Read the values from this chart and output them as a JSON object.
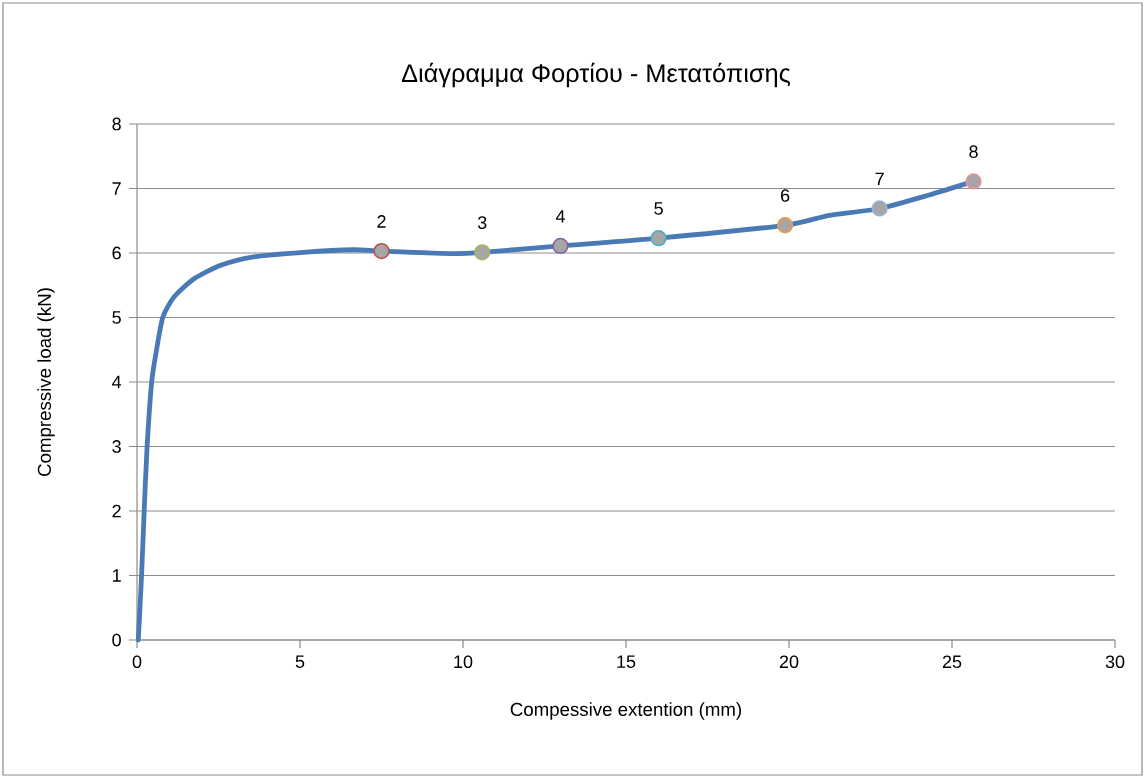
{
  "chart_data": {
    "type": "line",
    "title": "Διάγραμμα Φορτίου - Μετατόπισης",
    "xlabel": "Compessive extention (mm)",
    "ylabel": "Compressive load (kN)",
    "xlim": [
      0,
      30
    ],
    "ylim": [
      0,
      8
    ],
    "xticks": [
      0,
      5,
      10,
      15,
      20,
      25,
      30
    ],
    "yticks": [
      0,
      1,
      2,
      3,
      4,
      5,
      6,
      7,
      8
    ],
    "grid": "y",
    "series": [
      {
        "color": "#4a7ab5",
        "line_style": "solid",
        "marker": "none",
        "x": [
          0.04,
          0.14,
          0.22,
          0.31,
          0.45,
          0.58,
          0.79,
          1.14,
          1.75,
          2.57,
          3.58,
          5.1,
          6.64,
          7.5,
          9.72,
          10.59,
          12.99,
          16.0,
          19.88,
          21.2,
          22.78,
          24.3,
          25.66
        ],
        "values": [
          0,
          1,
          2,
          3,
          4,
          4.44,
          5,
          5.32,
          5.6,
          5.81,
          5.94,
          6.01,
          6.05,
          6.03,
          5.99,
          6.01,
          6.11,
          6.23,
          6.43,
          6.58,
          6.69,
          6.9,
          7.11
        ]
      },
      {
        "type": "scatter",
        "marker": "circle",
        "colors": [
          "#c0504d",
          "#9bbb59",
          "#8064a2",
          "#4bacc6",
          "#f79646",
          "#95b3d7",
          "#e6959a"
        ],
        "x": [
          7.5,
          10.59,
          12.99,
          16.0,
          19.88,
          22.78,
          25.66
        ],
        "values": [
          6.03,
          6.01,
          6.11,
          6.23,
          6.43,
          6.69,
          7.11
        ]
      }
    ],
    "annotations": [
      {
        "text": "2",
        "x": 7.5,
        "y": 6.03
      },
      {
        "text": "3",
        "x": 10.59,
        "y": 6.01
      },
      {
        "text": "4",
        "x": 12.99,
        "y": 6.11
      },
      {
        "text": "5",
        "x": 16.0,
        "y": 6.23
      },
      {
        "text": "6",
        "x": 19.88,
        "y": 6.43
      },
      {
        "text": "7",
        "x": 22.78,
        "y": 6.69
      },
      {
        "text": "8",
        "x": 25.66,
        "y": 7.11
      }
    ]
  }
}
